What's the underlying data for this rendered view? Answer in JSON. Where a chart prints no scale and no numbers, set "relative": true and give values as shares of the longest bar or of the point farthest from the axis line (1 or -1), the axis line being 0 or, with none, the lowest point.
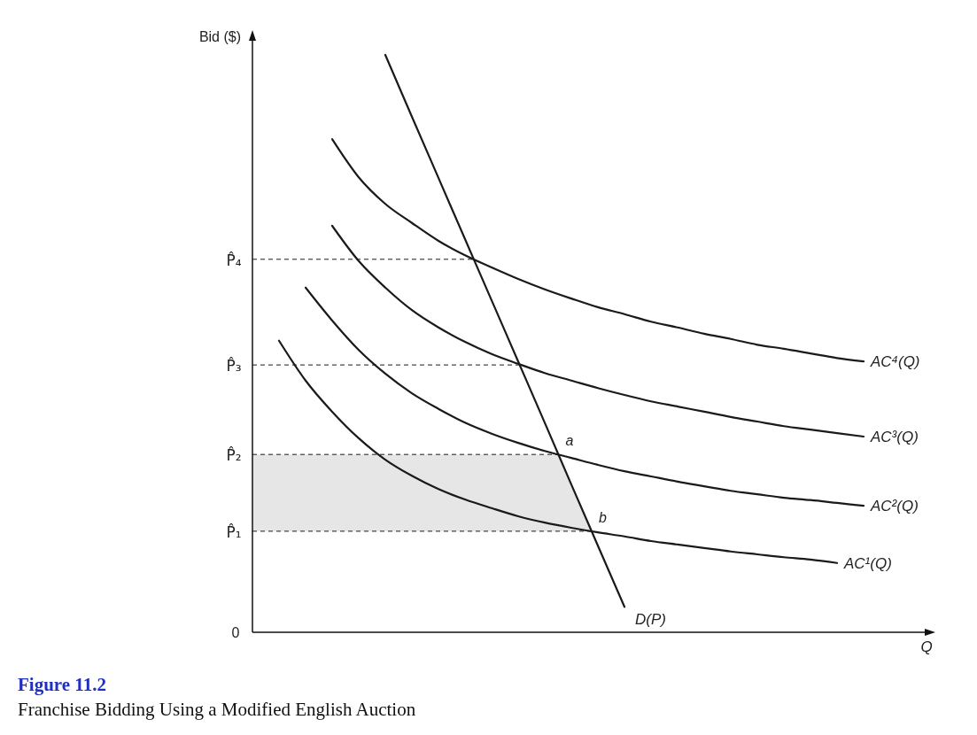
{
  "chart_data": {
    "type": "line",
    "relative": true,
    "title": "Figure 11.2",
    "subtitle": "Franchise Bidding Using a Modified English Auction",
    "xlabel": "Q",
    "ylabel": "Bid ($)",
    "categories": [
      null,
      null,
      null,
      null,
      null,
      null,
      null,
      null,
      null,
      null,
      null,
      null,
      null,
      null,
      null,
      null,
      null,
      null,
      null,
      null,
      null,
      null,
      null,
      null,
      null,
      null
    ],
    "series": [
      {
        "name": "AC⁴(Q)",
        "color": "#1a1a1a",
        "values": [
          null,
          null,
          null,
          0.854,
          0.788,
          0.742,
          0.709,
          0.678,
          0.653,
          0.632,
          0.612,
          0.594,
          0.578,
          0.563,
          0.551,
          0.538,
          0.528,
          0.517,
          0.508,
          0.498,
          0.491,
          0.483,
          0.475,
          0.469,
          null,
          null
        ]
      },
      {
        "name": "AC³(Q)",
        "color": "#1a1a1a",
        "values": [
          null,
          null,
          null,
          0.704,
          0.643,
          0.597,
          0.558,
          0.528,
          0.503,
          0.482,
          0.465,
          0.449,
          0.436,
          0.423,
          0.411,
          0.4,
          0.391,
          0.382,
          0.373,
          0.365,
          0.357,
          0.351,
          0.345,
          0.339,
          null,
          null
        ]
      },
      {
        "name": "AC²(Q)",
        "color": "#1a1a1a",
        "values": [
          null,
          null,
          0.597,
          0.54,
          0.489,
          0.448,
          0.414,
          0.387,
          0.363,
          0.344,
          0.328,
          0.314,
          0.302,
          0.29,
          0.279,
          0.27,
          0.261,
          0.253,
          0.245,
          0.239,
          0.233,
          0.229,
          0.224,
          0.219,
          null,
          null
        ]
      },
      {
        "name": "AC¹(Q)",
        "color": "#1a1a1a",
        "values": [
          null,
          0.505,
          0.436,
          0.382,
          0.336,
          0.299,
          0.271,
          0.248,
          0.23,
          0.215,
          0.201,
          0.19,
          0.181,
          0.173,
          0.166,
          0.158,
          0.152,
          0.146,
          0.14,
          0.135,
          0.13,
          0.126,
          0.12,
          null,
          null,
          null
        ]
      },
      {
        "name": "D(P)",
        "color": "#1a1a1a",
        "values": [
          null,
          null,
          null,
          null,
          null,
          1.0,
          0.893,
          0.787,
          0.681,
          0.575,
          0.469,
          0.363,
          0.256,
          0.15,
          0.044,
          null,
          null,
          null,
          null,
          null,
          null,
          null,
          null,
          null,
          null,
          null
        ]
      }
    ],
    "ref_lines": [
      {
        "axis": "y",
        "value": 0.646,
        "label": "P̂₄",
        "line_style": "dashed",
        "color": "#1a1a1a"
      },
      {
        "axis": "y",
        "value": 0.463,
        "label": "P̂₃",
        "line_style": "dashed",
        "color": "#1a1a1a"
      },
      {
        "axis": "y",
        "value": 0.308,
        "label": "P̂₂",
        "line_style": "dashed",
        "color": "#1a1a1a"
      },
      {
        "axis": "y",
        "value": 0.175,
        "label": "P̂₁",
        "line_style": "dashed",
        "color": "#1a1a1a"
      }
    ],
    "bands": [
      {
        "axis": "y",
        "from": 0.175,
        "to": 0.308,
        "color": "#e6e6e6"
      }
    ],
    "annotations": [
      {
        "text": "a",
        "y": 0.308
      },
      {
        "text": "b",
        "y": 0.175
      },
      "0"
    ]
  }
}
